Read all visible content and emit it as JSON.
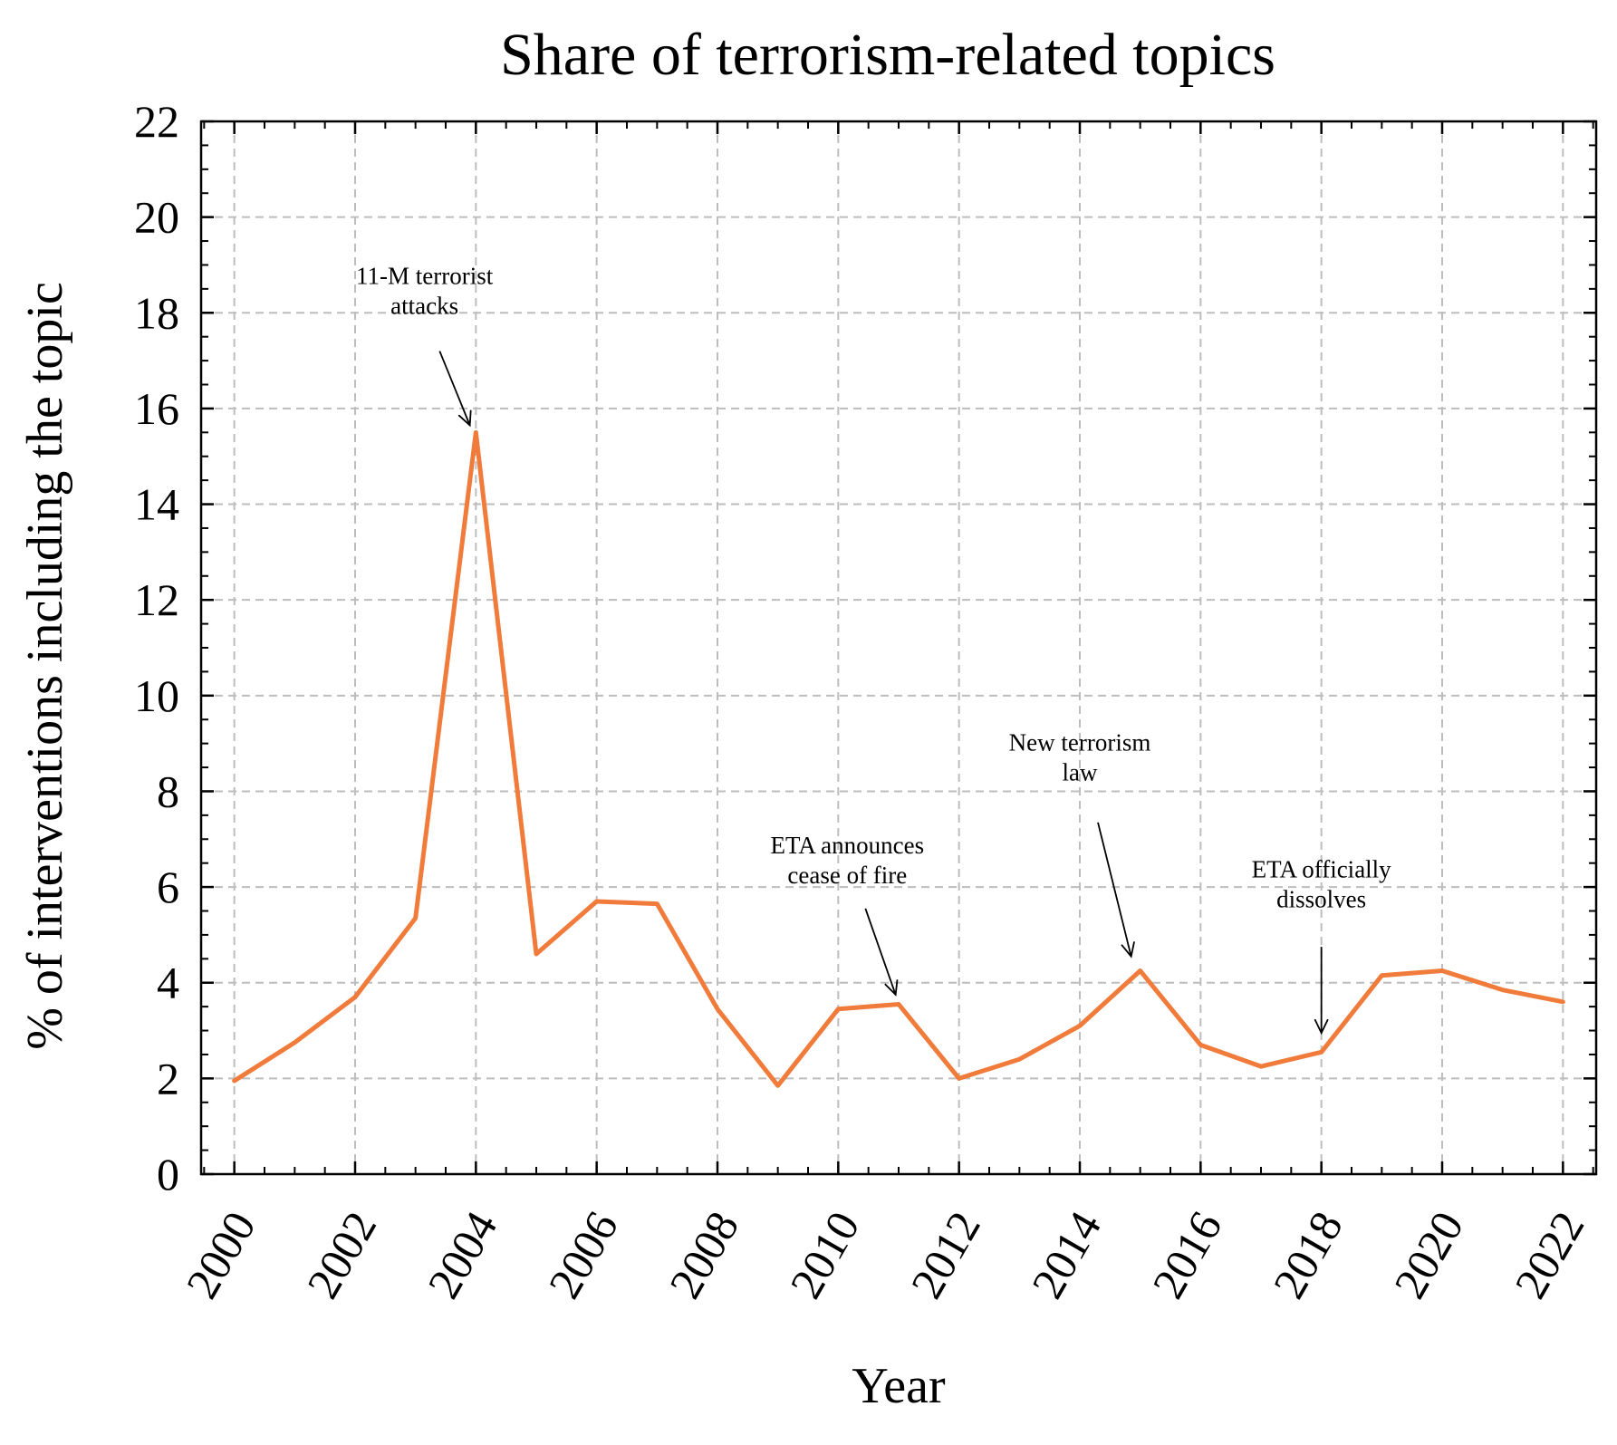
{
  "chart_data": {
    "type": "line",
    "title": "Share of terrorism-related topics",
    "xlabel": "Year",
    "ylabel": "% of interventions including the topic",
    "xlim": [
      1999.45,
      2022.55
    ],
    "ylim": [
      0,
      22
    ],
    "x_ticks": [
      2000,
      2002,
      2004,
      2006,
      2008,
      2010,
      2012,
      2014,
      2016,
      2018,
      2020,
      2022
    ],
    "y_ticks": [
      0,
      2,
      4,
      6,
      8,
      10,
      12,
      14,
      16,
      18,
      20,
      22
    ],
    "grid": true,
    "legend": "none",
    "series": [
      {
        "color": "#f07b3a",
        "x": [
          2000,
          2001,
          2002,
          2003,
          2004,
          2005,
          2006,
          2007,
          2008,
          2009,
          2010,
          2011,
          2012,
          2013,
          2014,
          2015,
          2016,
          2017,
          2018,
          2019,
          2020,
          2021,
          2022
        ],
        "values": [
          1.95,
          2.75,
          3.7,
          5.35,
          15.5,
          4.6,
          5.7,
          5.65,
          3.45,
          1.85,
          3.45,
          3.55,
          2.0,
          2.4,
          3.1,
          4.25,
          2.7,
          2.25,
          2.55,
          4.15,
          4.25,
          3.85,
          3.6
        ]
      }
    ],
    "annotations": [
      {
        "text": [
          "11-M terrorist",
          "attacks"
        ],
        "x": 2004,
        "y": 15.5
      },
      {
        "text": [
          "ETA announces",
          "cease of fire"
        ],
        "x": 2011,
        "y": 3.55
      },
      {
        "text": [
          "New terrorism",
          "law"
        ],
        "x": 2015,
        "y": 4.25
      },
      {
        "text": [
          "ETA officially",
          "dissolves"
        ],
        "x": 2018,
        "y": 2.55
      }
    ]
  }
}
